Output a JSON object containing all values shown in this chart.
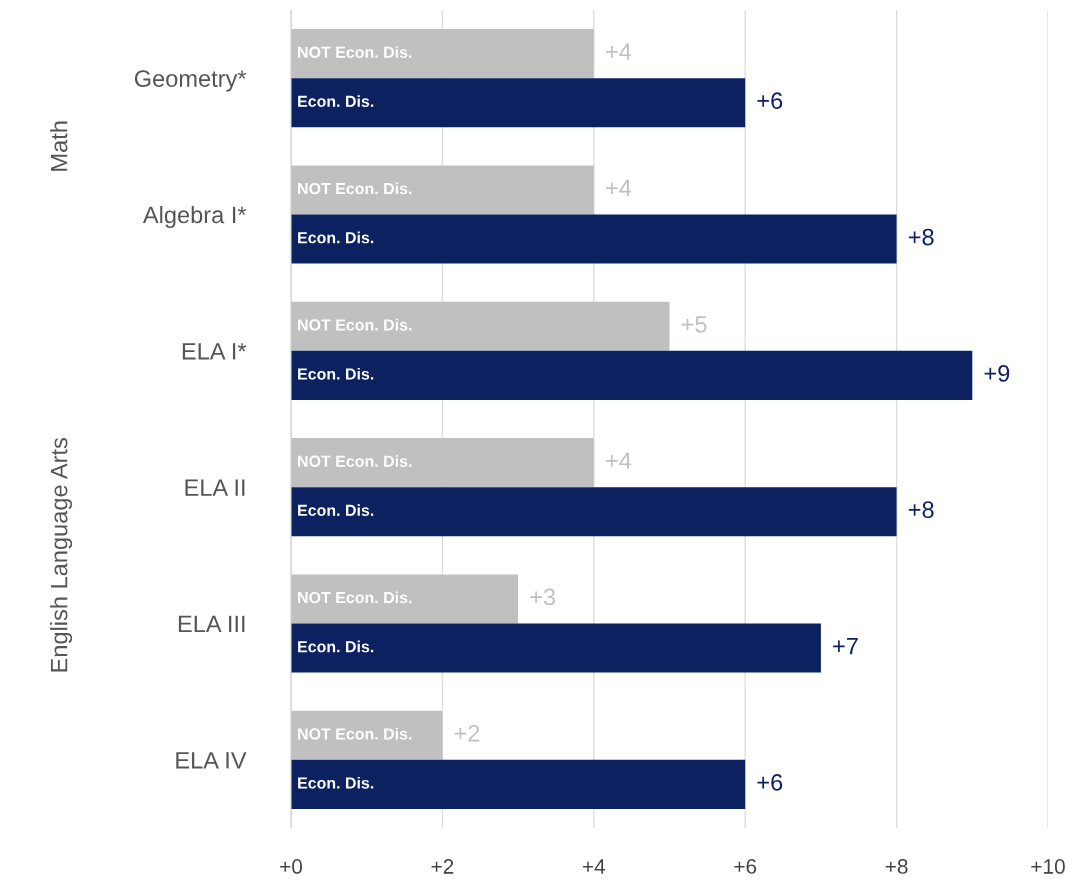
{
  "chart_data": {
    "type": "bar",
    "orientation": "horizontal",
    "categories": [
      "Geometry*",
      "Algebra I*",
      "ELA I*",
      "ELA II",
      "ELA III",
      "ELA IV"
    ],
    "series": [
      {
        "name": "NOT Econ. Dis.",
        "color": "#c0c0c0",
        "values": [
          4,
          4,
          5,
          4,
          3,
          2
        ],
        "value_labels": [
          "+4",
          "+4",
          "+5",
          "+4",
          "+3",
          "+2"
        ]
      },
      {
        "name": "Econ. Dis.",
        "color": "#0c2160",
        "values": [
          6,
          8,
          9,
          8,
          7,
          6
        ],
        "value_labels": [
          "+6",
          "+8",
          "+9",
          "+8",
          "+7",
          "+6"
        ]
      }
    ],
    "xlim": [
      0,
      10
    ],
    "xticks": [
      {
        "value": 0,
        "label": "+0"
      },
      {
        "value": 2,
        "label": "+2"
      },
      {
        "value": 4,
        "label": "+4"
      },
      {
        "value": 6,
        "label": "+6"
      },
      {
        "value": 8,
        "label": "+8"
      },
      {
        "value": 10,
        "label": "+10"
      }
    ],
    "grid": "x",
    "legend": false,
    "annotations": [
      "Math",
      "English Language Arts"
    ]
  }
}
